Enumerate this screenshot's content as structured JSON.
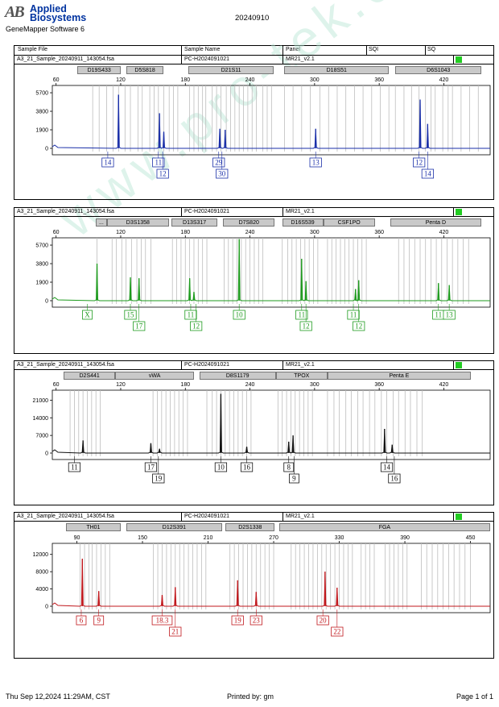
{
  "header": {
    "logo_mark": "AB",
    "brand_line1": "Applied",
    "brand_line2": "Biosystems",
    "software": "GeneMapper Software 6",
    "title": "20240910"
  },
  "columns": {
    "sample_file": "Sample File",
    "sample_name": "Sample Name",
    "panel": "Panel",
    "sqi": "SQI",
    "sq": "SQ"
  },
  "footer": {
    "printed_at": "Thu Sep 12,2024 11:29AM, CST",
    "printed_by": "Printed by: gm",
    "page": "Page 1 of 1"
  },
  "colors": {
    "blue": "#1a2fa8",
    "green": "#1e9b1e",
    "black": "#111111",
    "red": "#c0181d",
    "status": "#22cc22"
  },
  "chart_data": [
    {
      "type": "line",
      "dye": "blue",
      "sample_file": "A3_21_Sample_20240911_143054.fsa",
      "sample_name": "PC-H2024091021",
      "panel_name": "MR21_v2.1",
      "x_ticks": [
        60,
        120,
        180,
        240,
        300,
        360,
        420
      ],
      "xlim": [
        58,
        463
      ],
      "y_ticks": [
        0,
        1900,
        3800,
        5700
      ],
      "ylim": [
        0,
        6200
      ],
      "markers": [
        {
          "name": "D19S433",
          "start": 80,
          "end": 120
        },
        {
          "name": "D5S818",
          "start": 125,
          "end": 160
        },
        {
          "name": "D21S11",
          "start": 183,
          "end": 262
        },
        {
          "name": "D18S51",
          "start": 272,
          "end": 369
        },
        {
          "name": "D6S1043",
          "start": 375,
          "end": 455
        }
      ],
      "ladder_bins": [
        [
          94,
          100,
          107,
          113,
          118,
          124,
          129,
          136,
          140
        ],
        [
          147,
          151,
          155,
          160,
          165,
          169,
          173
        ],
        [
          184,
          188,
          192,
          196,
          199,
          205,
          209,
          213,
          218,
          222,
          226,
          230,
          234,
          238,
          242,
          246,
          252,
          256,
          260
        ],
        [
          272,
          280,
          288,
          296,
          305,
          313,
          321,
          329,
          337,
          345,
          353,
          361,
          369
        ],
        [
          375,
          383,
          390,
          397,
          403,
          408,
          412,
          419,
          424,
          428,
          436,
          444,
          452
        ]
      ],
      "peaks": [
        {
          "x": 118,
          "y": 5500
        },
        {
          "x": 156,
          "y": 3600
        },
        {
          "x": 160,
          "y": 1700
        },
        {
          "x": 212,
          "y": 2000
        },
        {
          "x": 217,
          "y": 1900
        },
        {
          "x": 301,
          "y": 2000
        },
        {
          "x": 398,
          "y": 5000
        },
        {
          "x": 405,
          "y": 2500
        }
      ],
      "labels_row1": [
        {
          "x": 108,
          "text": "14"
        },
        {
          "x": 155,
          "text": "11"
        },
        {
          "x": 211,
          "text": "29"
        },
        {
          "x": 301,
          "text": "13"
        },
        {
          "x": 397,
          "text": "12"
        }
      ],
      "labels_row2": [
        {
          "x": 159,
          "text": "12"
        },
        {
          "x": 214,
          "text": "30"
        },
        {
          "x": 405,
          "text": "14"
        }
      ]
    },
    {
      "type": "line",
      "dye": "green",
      "sample_file": "A3_21_Sample_20240911_143054.fsa",
      "sample_name": "PC-H2024091021",
      "panel_name": "MR21_v2.1",
      "x_ticks": [
        60,
        120,
        180,
        240,
        300,
        360,
        420
      ],
      "xlim": [
        58,
        463
      ],
      "y_ticks": [
        0,
        1900,
        3800,
        5700
      ],
      "ylim": [
        0,
        6200
      ],
      "markers": [
        {
          "name": "...",
          "start": 97,
          "end": 107
        },
        {
          "name": "D3S1358",
          "start": 107,
          "end": 165
        },
        {
          "name": "D13S317",
          "start": 167,
          "end": 210
        },
        {
          "name": "D7S820",
          "start": 215,
          "end": 263
        },
        {
          "name": "D16S539",
          "start": 270,
          "end": 308
        },
        {
          "name": "CSF1PO",
          "start": 308,
          "end": 356
        },
        {
          "name": "Penta D",
          "start": 370,
          "end": 455
        }
      ],
      "ladder_bins": [
        [
          98
        ],
        [
          112,
          116,
          121,
          125,
          130,
          135,
          139,
          143,
          148
        ],
        [
          168,
          172,
          176,
          180,
          184,
          188,
          192,
          196,
          200
        ],
        [
          216,
          220,
          224,
          228,
          232,
          236,
          240,
          244,
          248,
          252
        ],
        [
          270,
          275,
          279,
          283,
          287,
          291,
          295,
          299,
          303
        ],
        [
          312,
          316,
          320,
          324,
          328,
          332,
          336,
          340,
          344,
          348
        ],
        [
          378,
          383,
          388,
          393,
          398,
          403,
          408,
          413,
          418,
          423,
          428,
          433,
          438,
          443
        ]
      ],
      "peaks": [
        {
          "x": 98,
          "y": 3800
        },
        {
          "x": 129,
          "y": 2400
        },
        {
          "x": 137,
          "y": 2300
        },
        {
          "x": 184,
          "y": 2300
        },
        {
          "x": 188,
          "y": 900
        },
        {
          "x": 230,
          "y": 6500
        },
        {
          "x": 288,
          "y": 4300
        },
        {
          "x": 292,
          "y": 2000
        },
        {
          "x": 338,
          "y": 1200
        },
        {
          "x": 341,
          "y": 2100
        },
        {
          "x": 415,
          "y": 1800
        },
        {
          "x": 425,
          "y": 1600
        }
      ],
      "labels_row1": [
        {
          "x": 89,
          "text": "X"
        },
        {
          "x": 129,
          "text": "15"
        },
        {
          "x": 185,
          "text": "11"
        },
        {
          "x": 230,
          "text": "10"
        },
        {
          "x": 288,
          "text": "11"
        },
        {
          "x": 336,
          "text": "11"
        },
        {
          "x": 415,
          "text": "11"
        },
        {
          "x": 425,
          "text": "13"
        }
      ],
      "labels_row2": [
        {
          "x": 137,
          "text": "17"
        },
        {
          "x": 190,
          "text": "12"
        },
        {
          "x": 292,
          "text": "12"
        },
        {
          "x": 341,
          "text": "12"
        }
      ]
    },
    {
      "type": "line",
      "dye": "black",
      "sample_file": "A3_21_Sample_20240911_143054.fsa",
      "sample_name": "PC-H2024091021",
      "panel_name": "MR21_v2.1",
      "x_ticks": [
        60,
        120,
        180,
        240,
        300,
        360,
        420
      ],
      "xlim": [
        58,
        463
      ],
      "y_ticks": [
        0,
        7000,
        14000,
        21000
      ],
      "ylim": [
        0,
        24000
      ],
      "markers": [
        {
          "name": "D2S441",
          "start": 67,
          "end": 115
        },
        {
          "name": "vWA",
          "start": 115,
          "end": 188
        },
        {
          "name": "D8S1179",
          "start": 193,
          "end": 264
        },
        {
          "name": "TPOX",
          "start": 264,
          "end": 312
        },
        {
          "name": "Penta E",
          "start": 312,
          "end": 445
        }
      ],
      "ladder_bins": [
        [
          73,
          77,
          81,
          85,
          89,
          93,
          97,
          101
        ],
        [
          150,
          154,
          158,
          162,
          166,
          170,
          174,
          178,
          182
        ],
        [
          200,
          205,
          209,
          213,
          217,
          221,
          225,
          229,
          233,
          237,
          241
        ],
        [
          266,
          270,
          274,
          278,
          282,
          286,
          290,
          294,
          298
        ],
        [
          312,
          318,
          323,
          329,
          334,
          340,
          345,
          351,
          356,
          362,
          367,
          373,
          378,
          384,
          389,
          395,
          400
        ]
      ],
      "peaks": [
        {
          "x": 85,
          "y": 5000
        },
        {
          "x": 148,
          "y": 3900
        },
        {
          "x": 156,
          "y": 1700
        },
        {
          "x": 213,
          "y": 23500
        },
        {
          "x": 237,
          "y": 2500
        },
        {
          "x": 276,
          "y": 4500
        },
        {
          "x": 280,
          "y": 7000
        },
        {
          "x": 365,
          "y": 9600
        },
        {
          "x": 372,
          "y": 3300
        }
      ],
      "labels_row1": [
        {
          "x": 77,
          "text": "11"
        },
        {
          "x": 148,
          "text": "17"
        },
        {
          "x": 213,
          "text": "10"
        },
        {
          "x": 237,
          "text": "16"
        },
        {
          "x": 276,
          "text": "8"
        },
        {
          "x": 367,
          "text": "14"
        }
      ],
      "labels_row2": [
        {
          "x": 155,
          "text": "19"
        },
        {
          "x": 281,
          "text": "9"
        },
        {
          "x": 374,
          "text": "16"
        }
      ]
    },
    {
      "type": "line",
      "dye": "red",
      "sample_file": "A3_21_Sample_20240911_143054.fsa",
      "sample_name": "PC-H2024091021",
      "panel_name": "MR21_v2.1",
      "x_ticks": [
        90,
        150,
        210,
        270,
        330,
        390,
        450
      ],
      "xlim": [
        69,
        468
      ],
      "y_ticks": [
        0,
        4000,
        8000,
        12000
      ],
      "ylim": [
        0,
        14000
      ],
      "markers": [
        {
          "name": "TH01",
          "start": 80,
          "end": 130
        },
        {
          "name": "D12S391",
          "start": 135,
          "end": 223
        },
        {
          "name": "D2S1338",
          "start": 226,
          "end": 271
        },
        {
          "name": "FGA",
          "start": 275,
          "end": 468
        }
      ],
      "ladder_bins": [
        [
          93,
          97,
          101,
          104,
          108,
          112,
          116,
          120
        ],
        [
          160,
          164,
          168,
          172,
          176,
          180,
          184,
          188,
          192,
          196,
          200,
          204,
          208
        ],
        [
          230,
          234,
          238,
          242,
          246,
          250,
          254,
          258,
          262,
          266,
          270
        ],
        [
          286,
          290,
          294,
          298,
          302,
          306,
          310,
          314,
          318,
          322,
          326,
          330,
          334,
          338,
          342,
          350,
          354,
          358,
          362,
          372,
          376,
          380,
          384,
          388,
          392,
          405,
          410,
          415,
          420,
          425,
          430,
          435,
          440,
          445,
          450
        ]
      ],
      "peaks": [
        {
          "x": 95,
          "y": 11000
        },
        {
          "x": 110,
          "y": 3500
        },
        {
          "x": 168,
          "y": 2600
        },
        {
          "x": 180,
          "y": 4400
        },
        {
          "x": 237,
          "y": 6000
        },
        {
          "x": 254,
          "y": 3300
        },
        {
          "x": 317,
          "y": 8000
        },
        {
          "x": 328,
          "y": 4300
        }
      ],
      "labels_row1": [
        {
          "x": 94,
          "text": "6"
        },
        {
          "x": 110,
          "text": "9"
        },
        {
          "x": 168,
          "text": "18.3"
        },
        {
          "x": 237,
          "text": "19"
        },
        {
          "x": 254,
          "text": "23"
        },
        {
          "x": 315,
          "text": "20"
        }
      ],
      "labels_row2": [
        {
          "x": 180,
          "text": "21"
        },
        {
          "x": 328,
          "text": "22"
        }
      ]
    }
  ]
}
